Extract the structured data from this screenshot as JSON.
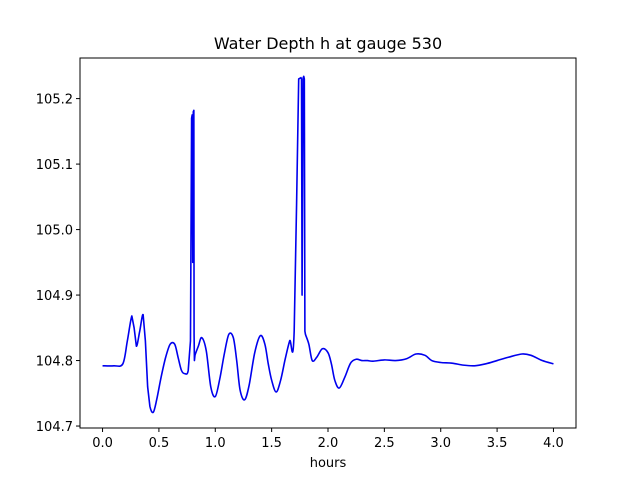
{
  "chart_data": {
    "type": "line",
    "title": "Water Depth h at gauge 530",
    "xlabel": "hours",
    "ylabel": "",
    "xlim": [
      -0.2,
      4.2
    ],
    "ylim": [
      104.697,
      105.262
    ],
    "xticks": [
      0.0,
      0.5,
      1.0,
      1.5,
      2.0,
      2.5,
      3.0,
      3.5,
      4.0
    ],
    "xtick_labels": [
      "0.0",
      "0.5",
      "1.0",
      "1.5",
      "2.0",
      "2.5",
      "3.0",
      "3.5",
      "4.0"
    ],
    "yticks": [
      104.7,
      104.8,
      104.9,
      105.0,
      105.1,
      105.2
    ],
    "ytick_labels": [
      "104.7",
      "104.8",
      "104.9",
      "105.0",
      "105.1",
      "105.2"
    ],
    "grid": false,
    "series": [
      {
        "color": "#0000ee",
        "x": [
          0.0,
          0.1,
          0.18,
          0.22,
          0.26,
          0.28,
          0.3,
          0.33,
          0.36,
          0.38,
          0.4,
          0.42,
          0.45,
          0.48,
          0.52,
          0.56,
          0.6,
          0.64,
          0.67,
          0.7,
          0.73,
          0.76,
          0.78,
          0.79,
          0.795,
          0.8,
          0.805,
          0.81,
          0.812,
          0.815,
          0.82,
          0.85,
          0.88,
          0.92,
          0.96,
          1.0,
          1.04,
          1.08,
          1.12,
          1.16,
          1.19,
          1.22,
          1.26,
          1.3,
          1.35,
          1.4,
          1.44,
          1.47,
          1.5,
          1.54,
          1.58,
          1.62,
          1.66,
          1.7,
          1.74,
          1.76,
          1.765,
          1.77,
          1.78,
          1.785,
          1.79,
          1.795,
          1.8,
          1.83,
          1.86,
          1.9,
          1.95,
          2.0,
          2.03,
          2.06,
          2.1,
          2.15,
          2.2,
          2.25,
          2.3,
          2.35,
          2.4,
          2.5,
          2.6,
          2.7,
          2.78,
          2.86,
          2.92,
          3.0,
          3.1,
          3.2,
          3.3,
          3.4,
          3.5,
          3.6,
          3.72,
          3.8,
          3.9,
          4.0
        ],
        "values": [
          104.792,
          104.792,
          104.795,
          104.83,
          104.868,
          104.85,
          104.822,
          104.845,
          104.87,
          104.83,
          104.76,
          104.73,
          104.721,
          104.74,
          104.775,
          104.805,
          104.825,
          104.825,
          104.805,
          104.785,
          104.78,
          104.785,
          104.83,
          105.17,
          105.175,
          104.95,
          105.18,
          105.182,
          104.84,
          104.8,
          104.808,
          104.822,
          104.835,
          104.815,
          104.76,
          104.745,
          104.772,
          104.81,
          104.84,
          104.835,
          104.8,
          104.755,
          104.74,
          104.762,
          104.812,
          104.838,
          104.825,
          104.795,
          104.77,
          104.752,
          104.77,
          104.802,
          104.83,
          104.845,
          105.23,
          105.232,
          105.23,
          104.9,
          105.232,
          105.234,
          105.23,
          104.845,
          104.84,
          104.825,
          104.8,
          104.805,
          104.818,
          104.812,
          104.795,
          104.77,
          104.758,
          104.775,
          104.796,
          104.802,
          104.8,
          104.8,
          104.799,
          104.801,
          104.8,
          104.803,
          104.81,
          104.808,
          104.8,
          104.797,
          104.796,
          104.793,
          104.792,
          104.795,
          104.8,
          104.805,
          104.81,
          104.808,
          104.8,
          104.795
        ]
      }
    ]
  }
}
